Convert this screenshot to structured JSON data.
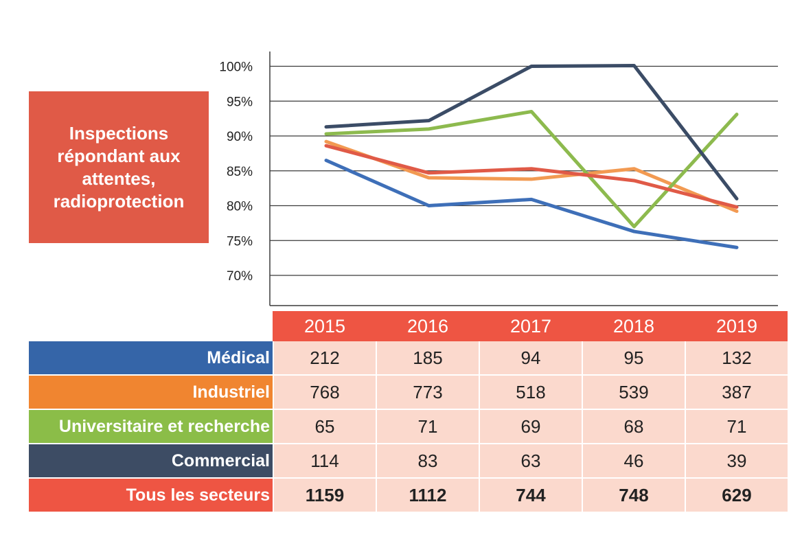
{
  "title": "Inspections\nrépondant aux\nattentes,\nradioprotection",
  "chart_data": {
    "type": "line",
    "x": [
      "2015",
      "2016",
      "2017",
      "2018",
      "2019"
    ],
    "y_ticks": [
      "100%",
      "95%",
      "90%",
      "85%",
      "80%",
      "75%",
      "70%"
    ],
    "ylim": [
      65,
      101
    ],
    "grid": true,
    "series": [
      {
        "name": "Médical",
        "color": "#3e6fb8",
        "values": [
          86.5,
          80.0,
          80.9,
          76.3,
          74.0
        ]
      },
      {
        "name": "Industriel",
        "color": "#f29a52",
        "values": [
          89.2,
          84.0,
          83.8,
          85.3,
          79.2
        ]
      },
      {
        "name": "Universitaire et recherche",
        "color": "#8dba4e",
        "values": [
          90.3,
          91.0,
          93.5,
          77.0,
          93.1
        ]
      },
      {
        "name": "Commercial",
        "color": "#3b4c66",
        "values": [
          91.3,
          92.2,
          100.0,
          100.1,
          81.0
        ]
      },
      {
        "name": "Tous les secteurs",
        "color": "#e05a47",
        "values": [
          88.6,
          84.7,
          85.3,
          83.6,
          79.8
        ]
      }
    ]
  },
  "table": {
    "years": [
      "2015",
      "2016",
      "2017",
      "2018",
      "2019"
    ],
    "rows": [
      {
        "label": "Médical",
        "color": "#3565a8",
        "values": [
          "212",
          "185",
          "94",
          "95",
          "132"
        ],
        "bold": false
      },
      {
        "label": "Industriel",
        "color": "#f08530",
        "values": [
          "768",
          "773",
          "518",
          "539",
          "387"
        ],
        "bold": false
      },
      {
        "label": "Universitaire et recherche",
        "color": "#8bbd48",
        "values": [
          "65",
          "71",
          "69",
          "68",
          "71"
        ],
        "bold": false
      },
      {
        "label": "Commercial",
        "color": "#3d4c64",
        "values": [
          "114",
          "83",
          "63",
          "46",
          "39"
        ],
        "bold": false
      },
      {
        "label": "Tous les secteurs",
        "color": "#ee5543",
        "values": [
          "1159",
          "1112",
          "744",
          "748",
          "629"
        ],
        "bold": true
      }
    ]
  }
}
